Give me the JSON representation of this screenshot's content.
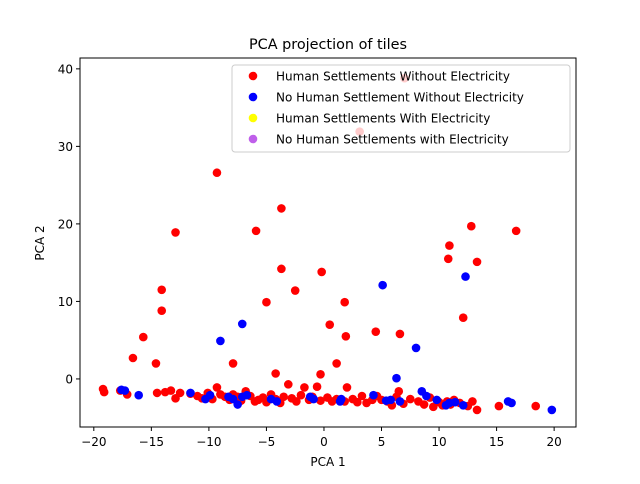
{
  "chart_data": {
    "type": "scatter",
    "title": "PCA projection of tiles",
    "xlabel": "PCA 1",
    "ylabel": "PCA 2",
    "xlim": [
      -21.2,
      21.9
    ],
    "ylim": [
      -6.2,
      41.4
    ],
    "xticks": [
      -20,
      -15,
      -10,
      -5,
      0,
      5,
      10,
      15,
      20
    ],
    "yticks": [
      0,
      10,
      20,
      30,
      40
    ],
    "legend_position": "top-right",
    "series": [
      {
        "name": "Human Settlements Without Electricity",
        "color": "#ff0000",
        "points": [
          [
            7.0,
            38.8
          ],
          [
            3.1,
            31.9
          ],
          [
            -9.3,
            26.6
          ],
          [
            -3.7,
            22.0
          ],
          [
            12.8,
            19.7
          ],
          [
            16.7,
            19.1
          ],
          [
            -12.9,
            18.9
          ],
          [
            -5.9,
            19.1
          ],
          [
            10.9,
            17.2
          ],
          [
            10.8,
            15.5
          ],
          [
            13.3,
            15.1
          ],
          [
            -3.7,
            14.2
          ],
          [
            -0.2,
            13.8
          ],
          [
            -14.1,
            11.5
          ],
          [
            -2.5,
            11.4
          ],
          [
            -5.0,
            9.9
          ],
          [
            1.8,
            9.9
          ],
          [
            -14.1,
            8.8
          ],
          [
            12.1,
            7.9
          ],
          [
            0.5,
            7.0
          ],
          [
            4.5,
            6.1
          ],
          [
            6.6,
            5.8
          ],
          [
            -15.7,
            5.4
          ],
          [
            1.9,
            5.5
          ],
          [
            -16.6,
            2.7
          ],
          [
            -14.6,
            2.0
          ],
          [
            -7.9,
            2.0
          ],
          [
            1.1,
            2.0
          ],
          [
            -4.2,
            0.7
          ],
          [
            -0.3,
            0.6
          ],
          [
            -19.2,
            -1.3
          ],
          [
            -19.1,
            -1.7
          ],
          [
            -17.7,
            -1.5
          ],
          [
            -17.1,
            -2.0
          ],
          [
            -14.5,
            -1.8
          ],
          [
            -13.8,
            -1.7
          ],
          [
            -13.3,
            -1.5
          ],
          [
            -12.9,
            -2.5
          ],
          [
            -12.5,
            -1.8
          ],
          [
            -11.6,
            -1.9
          ],
          [
            -11.0,
            -2.2
          ],
          [
            -10.6,
            -2.5
          ],
          [
            -10.1,
            -1.8
          ],
          [
            -9.7,
            -2.6
          ],
          [
            -9.3,
            -1.1
          ],
          [
            -9.0,
            -2.0
          ],
          [
            -8.6,
            -2.3
          ],
          [
            -8.2,
            -2.7
          ],
          [
            -7.9,
            -2.0
          ],
          [
            -7.5,
            -2.3
          ],
          [
            -7.2,
            -2.8
          ],
          [
            -6.8,
            -1.6
          ],
          [
            -6.4,
            -2.2
          ],
          [
            -6.0,
            -2.9
          ],
          [
            -5.7,
            -2.7
          ],
          [
            -5.3,
            -2.4
          ],
          [
            -5.0,
            -3.0
          ],
          [
            -4.6,
            -2.0
          ],
          [
            -4.2,
            -2.6
          ],
          [
            -3.8,
            -3.1
          ],
          [
            -3.5,
            -2.3
          ],
          [
            -3.1,
            -0.7
          ],
          [
            -2.8,
            -2.5
          ],
          [
            -2.4,
            -2.9
          ],
          [
            -2.0,
            -2.1
          ],
          [
            -1.7,
            -1.1
          ],
          [
            -1.3,
            -2.7
          ],
          [
            -1.0,
            -2.3
          ],
          [
            -0.6,
            -1.0
          ],
          [
            -0.3,
            -2.8
          ],
          [
            0.3,
            -2.4
          ],
          [
            0.7,
            -2.9
          ],
          [
            1.1,
            -2.6
          ],
          [
            1.8,
            -2.9
          ],
          [
            2.0,
            -1.1
          ],
          [
            2.5,
            -2.6
          ],
          [
            2.9,
            -3.0
          ],
          [
            3.3,
            -2.2
          ],
          [
            3.7,
            -3.1
          ],
          [
            4.2,
            -2.7
          ],
          [
            4.6,
            -2.2
          ],
          [
            5.0,
            -2.7
          ],
          [
            5.5,
            -2.9
          ],
          [
            5.9,
            -3.4
          ],
          [
            6.3,
            -2.3
          ],
          [
            6.5,
            -1.6
          ],
          [
            6.9,
            -3.2
          ],
          [
            7.5,
            -2.6
          ],
          [
            8.2,
            -2.9
          ],
          [
            8.7,
            -3.3
          ],
          [
            9.2,
            -2.4
          ],
          [
            9.5,
            -3.6
          ],
          [
            10.0,
            -3.0
          ],
          [
            10.3,
            -3.4
          ],
          [
            10.7,
            -2.9
          ],
          [
            11.0,
            -3.3
          ],
          [
            11.3,
            -2.7
          ],
          [
            11.8,
            -3.1
          ],
          [
            12.5,
            -3.5
          ],
          [
            12.9,
            -2.9
          ],
          [
            13.3,
            -4.0
          ],
          [
            15.2,
            -3.5
          ],
          [
            18.4,
            -3.5
          ]
        ]
      },
      {
        "name": "No Human Settlement Without Electricity",
        "color": "#0000ff",
        "points": [
          [
            5.1,
            12.1
          ],
          [
            12.3,
            13.2
          ],
          [
            -7.1,
            7.1
          ],
          [
            -9.0,
            4.9
          ],
          [
            8.0,
            4.0
          ],
          [
            6.3,
            0.1
          ],
          [
            -17.6,
            -1.4
          ],
          [
            -17.3,
            -1.5
          ],
          [
            -16.1,
            -2.1
          ],
          [
            -11.6,
            -1.8
          ],
          [
            -10.3,
            -2.6
          ],
          [
            -9.9,
            -2.1
          ],
          [
            -8.3,
            -2.3
          ],
          [
            -7.9,
            -2.6
          ],
          [
            -7.5,
            -3.3
          ],
          [
            -7.1,
            -2.3
          ],
          [
            -6.7,
            -2.1
          ],
          [
            -4.6,
            -2.6
          ],
          [
            -4.1,
            -2.9
          ],
          [
            -1.2,
            -2.3
          ],
          [
            -0.9,
            -2.6
          ],
          [
            1.4,
            -2.9
          ],
          [
            1.5,
            -2.6
          ],
          [
            4.3,
            -2.1
          ],
          [
            5.4,
            -2.8
          ],
          [
            5.8,
            -2.7
          ],
          [
            6.6,
            -2.9
          ],
          [
            8.5,
            -1.6
          ],
          [
            8.9,
            -2.2
          ],
          [
            9.8,
            -2.7
          ],
          [
            10.6,
            -3.4
          ],
          [
            10.9,
            -3.1
          ],
          [
            11.4,
            -3.0
          ],
          [
            12.1,
            -3.4
          ],
          [
            16.0,
            -2.9
          ],
          [
            16.3,
            -3.1
          ],
          [
            19.8,
            -4.0
          ]
        ]
      },
      {
        "name": "Human Settlements With Electricity",
        "color": "#ffff00",
        "points": []
      },
      {
        "name": "No Human Settlements with Electricity",
        "color": "#bf5fea",
        "points": []
      }
    ]
  }
}
